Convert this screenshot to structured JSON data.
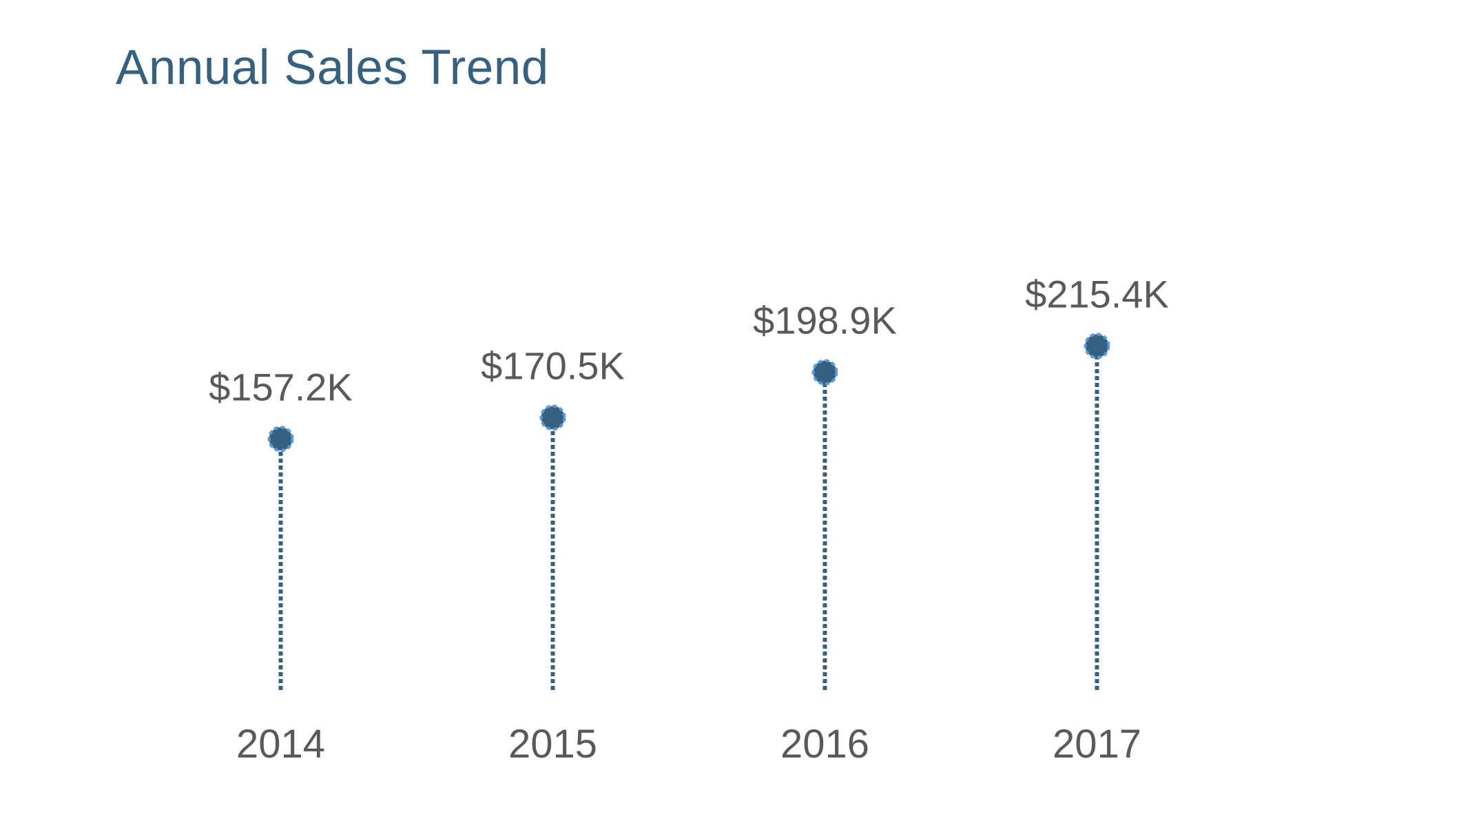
{
  "chart_data": {
    "type": "lollipop",
    "title": "Annual Sales Trend",
    "categories": [
      "2014",
      "2015",
      "2016",
      "2017"
    ],
    "values": [
      157.2,
      170.5,
      198.9,
      215.4
    ],
    "data_labels": [
      "$157.2K",
      "$170.5K",
      "$198.9K",
      "$215.4K"
    ],
    "unit": "$K",
    "xlabel": "",
    "ylabel": "",
    "ylim": [
      0,
      350
    ],
    "grid": false,
    "legend": "none",
    "colors": {
      "title": "#36607F",
      "stem": "#36607F",
      "marker_fill": "#36607F",
      "marker_outline": "#5B9BD5",
      "label_text": "#595959"
    }
  }
}
